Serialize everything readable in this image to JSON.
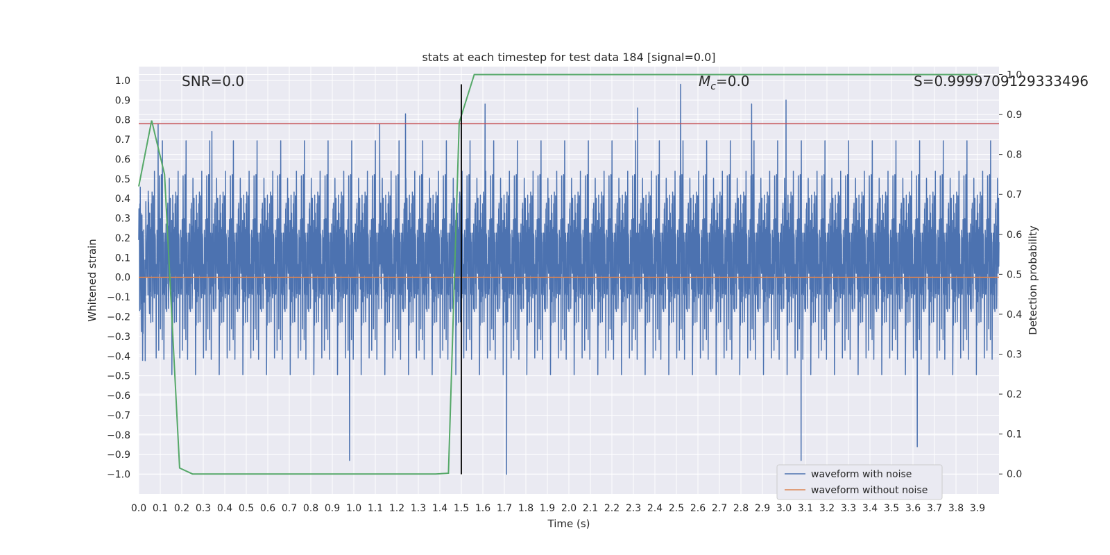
{
  "chart_data": {
    "type": "line",
    "title": "stats at each timestep for test data 184 [signal=0.0]",
    "xlabel": "Time (s)",
    "ylabel": "Whitened strain",
    "y2label": "Detection probability",
    "xlim": [
      0.0,
      4.0
    ],
    "ylim": [
      -1.1,
      1.07
    ],
    "y2lim": [
      -0.05,
      1.02
    ],
    "x_ticks": [
      "0.0",
      "0.1",
      "0.2",
      "0.3",
      "0.4",
      "0.5",
      "0.6",
      "0.7",
      "0.8",
      "0.9",
      "1.0",
      "1.1",
      "1.2",
      "1.3",
      "1.4",
      "1.5",
      "1.6",
      "1.7",
      "1.8",
      "1.9",
      "2.0",
      "2.1",
      "2.2",
      "2.3",
      "2.4",
      "2.5",
      "2.6",
      "2.7",
      "2.8",
      "2.9",
      "3.0",
      "3.1",
      "3.2",
      "3.3",
      "3.4",
      "3.5",
      "3.6",
      "3.7",
      "3.8",
      "3.9"
    ],
    "y_ticks": [
      "1.0",
      "0.9",
      "0.8",
      "0.7",
      "0.6",
      "0.5",
      "0.4",
      "0.3",
      "0.2",
      "0.1",
      "0.0",
      "−0.1",
      "−0.2",
      "−0.3",
      "−0.4",
      "−0.5",
      "−0.6",
      "−0.7",
      "−0.8",
      "−0.9",
      "−1.0"
    ],
    "y2_ticks": [
      "1.0",
      "0.9",
      "0.8",
      "0.7",
      "0.6",
      "0.5",
      "0.4",
      "0.3",
      "0.2",
      "0.1",
      "0.0"
    ],
    "series": [
      {
        "name": "waveform with noise",
        "axis": "left",
        "color": "#4c72b0",
        "description": "dense noise trace spanning roughly -1.0 to 1.0",
        "x_range": [
          0.0,
          4.0
        ],
        "peaks": [
          {
            "x": 0.09,
            "y": 0.78
          },
          {
            "x": 0.34,
            "y": 0.74
          },
          {
            "x": 1.12,
            "y": 0.78
          },
          {
            "x": 1.24,
            "y": 0.83
          },
          {
            "x": 1.61,
            "y": 0.88
          },
          {
            "x": 2.32,
            "y": 0.86
          },
          {
            "x": 2.52,
            "y": 0.98
          },
          {
            "x": 2.85,
            "y": 0.88
          },
          {
            "x": 3.01,
            "y": 0.9
          },
          {
            "x": 0.98,
            "y": -0.93
          },
          {
            "x": 1.71,
            "y": -1.0
          },
          {
            "x": 3.08,
            "y": -0.93
          },
          {
            "x": 3.62,
            "y": -0.86
          }
        ]
      },
      {
        "name": "waveform without noise",
        "axis": "left",
        "color": "#dd8452",
        "x": [
          0.0,
          4.0
        ],
        "y": [
          0.0,
          0.0
        ]
      },
      {
        "name": "detection probability",
        "axis": "right",
        "color": "#55a868",
        "x": [
          0.0,
          0.06,
          0.12,
          0.19,
          0.25,
          1.38,
          1.44,
          1.49,
          1.56,
          3.9
        ],
        "y": [
          0.72,
          0.885,
          0.75,
          0.015,
          0.0,
          0.0,
          0.002,
          0.88,
          1.0,
          1.0
        ]
      }
    ],
    "threshold": {
      "axis": "left",
      "value": 0.78,
      "color": "#c44e52"
    },
    "marker_line": {
      "x": 1.5,
      "y_range": [
        -1.0,
        0.98
      ],
      "color": "#000000"
    },
    "legend": {
      "position": "lower-right",
      "entries": [
        "waveform with noise",
        "waveform without noise"
      ]
    },
    "annotations": {
      "snr": "SNR=0.0",
      "mc_symbol": "M",
      "mc_sub": "c",
      "mc_value": "=0.0",
      "s": "S=0.9999709129333496"
    },
    "style": {
      "plot_bg": "#eaeaf2",
      "grid": "#ffffff",
      "noise_color": "#4c72b0",
      "clean_color": "#dd8452",
      "prob_color": "#55a868",
      "threshold_color": "#c44e52"
    }
  }
}
